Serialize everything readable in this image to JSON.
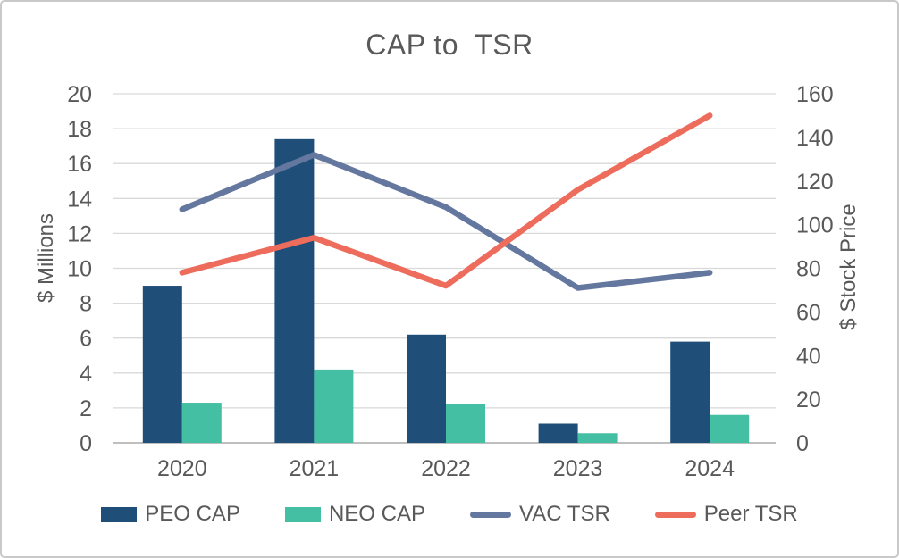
{
  "chart_data": {
    "type": "combo-bar-line",
    "title": "CAP to  TSR",
    "categories": [
      "2020",
      "2021",
      "2022",
      "2023",
      "2024"
    ],
    "bar_series": [
      {
        "name": "PEO CAP",
        "axis": "left",
        "color": "#1F4E79",
        "values": [
          9.0,
          17.4,
          6.2,
          1.1,
          5.8
        ]
      },
      {
        "name": "NEO CAP",
        "axis": "left",
        "color": "#45BFA3",
        "values": [
          2.3,
          4.2,
          2.2,
          0.55,
          1.6
        ]
      }
    ],
    "line_series": [
      {
        "name": "VAC TSR",
        "axis": "right",
        "color": "#64779F",
        "values": [
          107,
          132,
          108,
          71,
          78
        ]
      },
      {
        "name": "Peer TSR",
        "axis": "right",
        "color": "#ED6C5C",
        "values": [
          78,
          94,
          72,
          116,
          150
        ]
      }
    ],
    "left_axis": {
      "label": "$ Millions",
      "min": 0,
      "max": 20,
      "step": 2,
      "ticks": [
        0,
        2,
        4,
        6,
        8,
        10,
        12,
        14,
        16,
        18,
        20
      ]
    },
    "right_axis": {
      "label": "$ Stock Price",
      "min": 0,
      "max": 160,
      "step": 20,
      "ticks": [
        0,
        20,
        40,
        60,
        80,
        100,
        120,
        140,
        160
      ]
    },
    "grid": {
      "show": true,
      "color": "#D9D9D9",
      "axis_line_color": "#BFBFBF"
    },
    "legend_position": "bottom",
    "text_color": "#595959"
  }
}
